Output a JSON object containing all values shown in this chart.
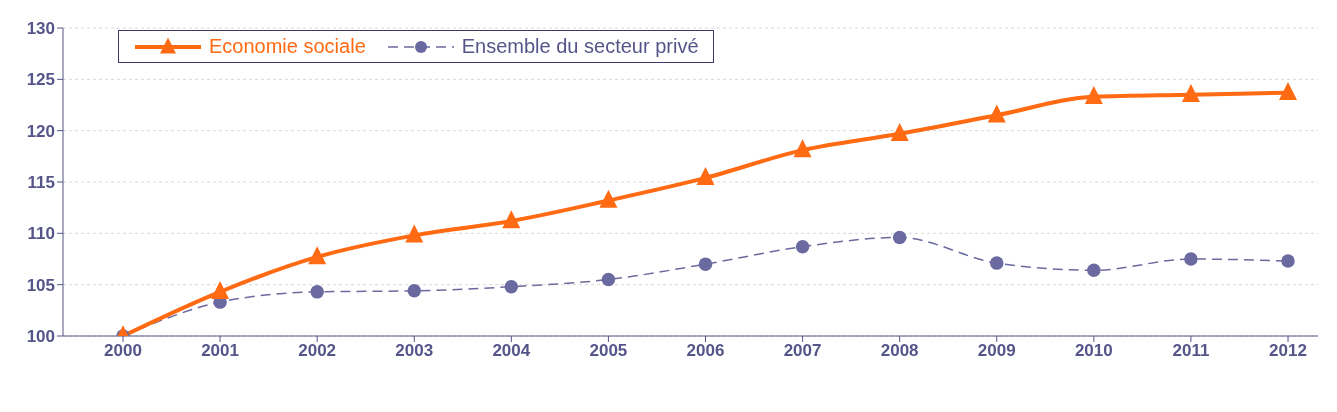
{
  "chart_data": {
    "type": "line",
    "categories": [
      "2000",
      "2001",
      "2002",
      "2003",
      "2004",
      "2005",
      "2006",
      "2007",
      "2008",
      "2009",
      "2010",
      "2011",
      "2012"
    ],
    "series": [
      {
        "name": "Economie sociale",
        "color": "#ff6a13",
        "marker": "triangle",
        "line_style": "solid",
        "values": [
          100,
          104.3,
          107.7,
          109.8,
          111.2,
          113.2,
          115.4,
          118.1,
          119.7,
          121.5,
          123.3,
          123.5,
          123.7
        ]
      },
      {
        "name": "Ensemble du secteur privé",
        "color": "#6a6aa0",
        "marker": "circle",
        "line_style": "dashed",
        "values": [
          100,
          103.3,
          104.3,
          104.4,
          104.8,
          105.5,
          107.0,
          108.7,
          109.6,
          107.1,
          106.4,
          107.5,
          107.3
        ]
      }
    ],
    "ylim": [
      100,
      130
    ],
    "yticks": [
      100,
      105,
      110,
      115,
      120,
      125,
      130
    ],
    "grid": "y",
    "legend": "top left"
  }
}
